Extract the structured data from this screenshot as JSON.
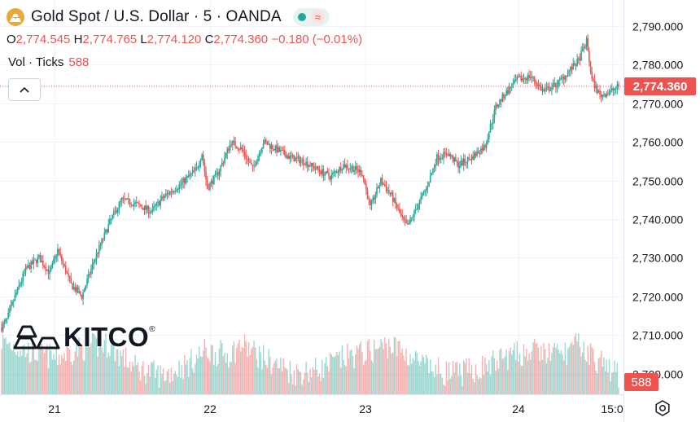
{
  "header": {
    "title": "Gold Spot / U.S. Dollar · 5 · OANDA",
    "symbol_icon": "gold-bars-icon",
    "badge_icons": [
      "market-open-dot-icon",
      "approx-icon"
    ]
  },
  "ohlc": {
    "o_label": "O",
    "o": "2,774.545",
    "h_label": "H",
    "h": "2,774.765",
    "l_label": "L",
    "l": "2,774.120",
    "c_label": "C",
    "c": "2,774.360",
    "change": "−0.180 (−0.01%)"
  },
  "volume": {
    "label": "Vol · Ticks",
    "value": "588"
  },
  "logo": {
    "text": "KITCO",
    "mark": "®"
  },
  "colors": {
    "up": "#26a69a",
    "down": "#ef5350",
    "grid": "#f0f3fa",
    "text": "#131722"
  },
  "chart_data": {
    "type": "candlestick",
    "y_ticks": [
      "2,790.000",
      "2,780.000",
      "2,770.000",
      "2,760.000",
      "2,750.000",
      "2,740.000",
      "2,730.000",
      "2,720.000",
      "2,710.000",
      "2,700.000"
    ],
    "y_tick_values": [
      2790,
      2780,
      2770,
      2760,
      2750,
      2740,
      2730,
      2720,
      2710,
      2700
    ],
    "ylim": [
      2694.7,
      2796.7
    ],
    "x_ticks": [
      "21",
      "22",
      "23",
      "24",
      "15:0"
    ],
    "last_price": 2774.36,
    "last_price_label": "2,774.360",
    "last_volume_label": "588",
    "price_path": [
      [
        0,
        2712
      ],
      [
        4,
        2714
      ],
      [
        10,
        2720
      ],
      [
        18,
        2727
      ],
      [
        28,
        2730
      ],
      [
        36,
        2726
      ],
      [
        42,
        2732
      ],
      [
        52,
        2723
      ],
      [
        60,
        2720
      ],
      [
        70,
        2730
      ],
      [
        82,
        2740
      ],
      [
        90,
        2745
      ],
      [
        100,
        2744
      ],
      [
        112,
        2742
      ],
      [
        122,
        2746
      ],
      [
        134,
        2749
      ],
      [
        146,
        2753
      ],
      [
        150,
        2757
      ],
      [
        154,
        2748
      ],
      [
        162,
        2752
      ],
      [
        172,
        2760
      ],
      [
        180,
        2758
      ],
      [
        188,
        2753
      ],
      [
        196,
        2760
      ],
      [
        206,
        2758
      ],
      [
        216,
        2756
      ],
      [
        226,
        2755
      ],
      [
        236,
        2753
      ],
      [
        246,
        2751
      ],
      [
        256,
        2754
      ],
      [
        264,
        2753
      ],
      [
        270,
        2752
      ],
      [
        276,
        2743
      ],
      [
        284,
        2750
      ],
      [
        292,
        2746
      ],
      [
        300,
        2740
      ],
      [
        304,
        2738
      ],
      [
        312,
        2744
      ],
      [
        318,
        2748
      ],
      [
        326,
        2756
      ],
      [
        334,
        2757
      ],
      [
        342,
        2754
      ],
      [
        352,
        2756
      ],
      [
        362,
        2759
      ],
      [
        370,
        2769
      ],
      [
        376,
        2772
      ],
      [
        386,
        2776
      ],
      [
        396,
        2777
      ],
      [
        406,
        2773
      ],
      [
        416,
        2775
      ],
      [
        424,
        2778
      ],
      [
        432,
        2781
      ],
      [
        438,
        2786
      ],
      [
        442,
        2776
      ],
      [
        448,
        2772
      ],
      [
        456,
        2773
      ],
      [
        462,
        2774.36
      ]
    ],
    "volume_shape": [
      [
        0,
        0.6
      ],
      [
        20,
        0.45
      ],
      [
        40,
        0.35
      ],
      [
        60,
        0.5
      ],
      [
        80,
        0.55
      ],
      [
        100,
        0.2
      ],
      [
        120,
        0.08
      ],
      [
        140,
        0.25
      ],
      [
        152,
        0.45
      ],
      [
        170,
        0.4
      ],
      [
        180,
        0.55
      ],
      [
        200,
        0.3
      ],
      [
        220,
        0.12
      ],
      [
        240,
        0.18
      ],
      [
        256,
        0.35
      ],
      [
        276,
        0.45
      ],
      [
        290,
        0.55
      ],
      [
        300,
        0.45
      ],
      [
        320,
        0.18
      ],
      [
        340,
        0.1
      ],
      [
        360,
        0.2
      ],
      [
        376,
        0.35
      ],
      [
        396,
        0.45
      ],
      [
        420,
        0.4
      ],
      [
        432,
        0.55
      ],
      [
        450,
        0.25
      ],
      [
        462,
        0.1
      ]
    ]
  }
}
